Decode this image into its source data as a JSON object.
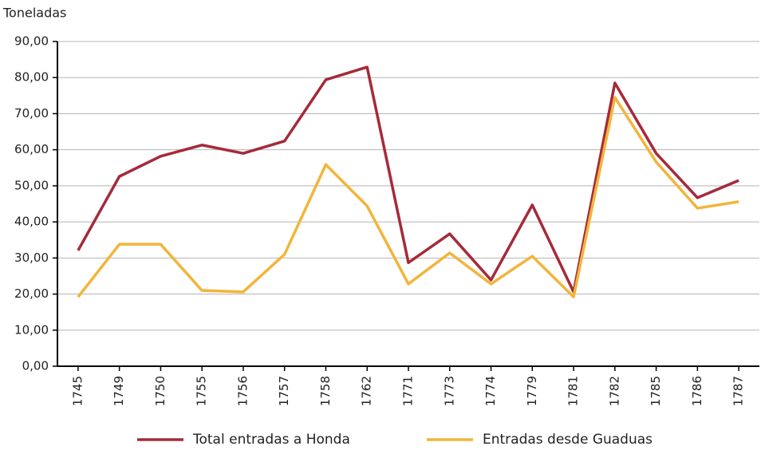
{
  "chart_data": {
    "type": "line",
    "y_label": "Toneladas",
    "categories": [
      "1745",
      "1749",
      "1750",
      "1755",
      "1756",
      "1757",
      "1758",
      "1762",
      "1771",
      "1773",
      "1774",
      "1779",
      "1781",
      "1782",
      "1785",
      "1786",
      "1787"
    ],
    "series": [
      {
        "name": "Total entradas a Honda",
        "color": "#a52a3a",
        "values": [
          32.1,
          52.6,
          58.2,
          61.3,
          59.0,
          62.4,
          79.4,
          82.9,
          28.7,
          36.7,
          23.9,
          44.7,
          20.6,
          78.5,
          59.0,
          46.7,
          51.5
        ]
      },
      {
        "name": "Entradas desde Guaduas",
        "color": "#f2b53a",
        "values": [
          19.2,
          33.8,
          33.8,
          21.0,
          20.6,
          31.0,
          55.9,
          44.4,
          22.8,
          31.4,
          22.8,
          30.5,
          19.2,
          74.5,
          56.6,
          43.8,
          45.6
        ]
      }
    ],
    "ylim": [
      0,
      90
    ],
    "yticks": [
      {
        "value": 0,
        "label": "0,00"
      },
      {
        "value": 10,
        "label": "10,00"
      },
      {
        "value": 20,
        "label": "20,00"
      },
      {
        "value": 30,
        "label": "30,00"
      },
      {
        "value": 40,
        "label": "40,00"
      },
      {
        "value": 50,
        "label": "50,00"
      },
      {
        "value": 60,
        "label": "60,00"
      },
      {
        "value": 70,
        "label": "70,00"
      },
      {
        "value": 80,
        "label": "80,00"
      },
      {
        "value": 90,
        "label": "90,00"
      }
    ],
    "grid": true,
    "legend": "bottom"
  }
}
